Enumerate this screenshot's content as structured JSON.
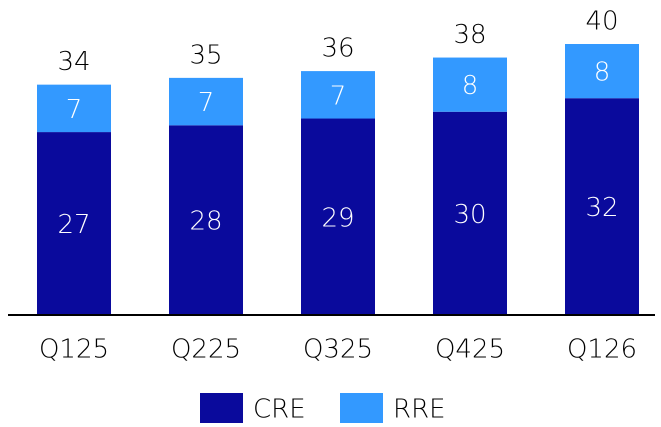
{
  "chart_data": {
    "type": "stacked_bar",
    "categories": [
      "Q125",
      "Q225",
      "Q325",
      "Q425",
      "Q126"
    ],
    "series": [
      {
        "name": "CRE",
        "color": "#0a0a9c",
        "values": [
          27,
          28,
          29,
          30,
          32
        ]
      },
      {
        "name": "RRE",
        "color": "#3399ff",
        "values": [
          7,
          7,
          7,
          8,
          8
        ]
      }
    ],
    "totals": [
      34,
      35,
      36,
      38,
      40
    ]
  }
}
